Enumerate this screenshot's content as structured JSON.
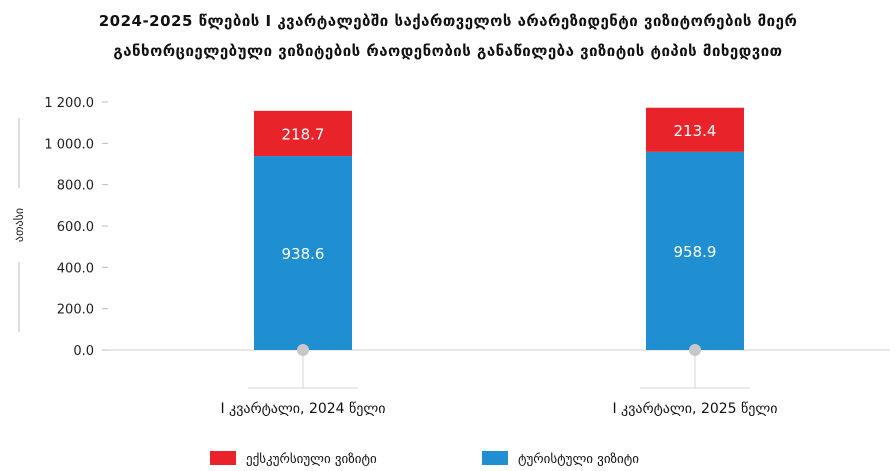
{
  "chart_data": {
    "type": "bar",
    "stacked": true,
    "title": "2024-2025 წლების I კვარტალებში საქართველოს არარეზიდენტი ვიზიტორების მიერ",
    "subtitle": "განხორციელებული ვიზიტების რაოდენობის განაწილება ვიზიტის ტიპის მიხედვით",
    "ylabel": "ათასი",
    "xlabel": "",
    "categories": [
      "I კვარტალი, 2024 წელი",
      "I კვარტალი, 2025 წელი"
    ],
    "series": [
      {
        "name": "ტურისტული ვიზიტი",
        "color": "#1f8fd2",
        "values": [
          938.6,
          958.9
        ]
      },
      {
        "name": "ექსკურსიული ვიზიტი",
        "color": "#e8232a",
        "values": [
          218.7,
          213.4
        ]
      }
    ],
    "ylim": [
      0,
      1200
    ],
    "yticks": [
      "0.0",
      "200.0",
      "400.0",
      "600.0",
      "800.0",
      "1 000.0",
      "1 200.0"
    ],
    "legend_order": [
      "ექსკურსიული ვიზიტი",
      "ტურისტული ვიზიტი"
    ],
    "legend_position": "bottom",
    "grid": false
  }
}
